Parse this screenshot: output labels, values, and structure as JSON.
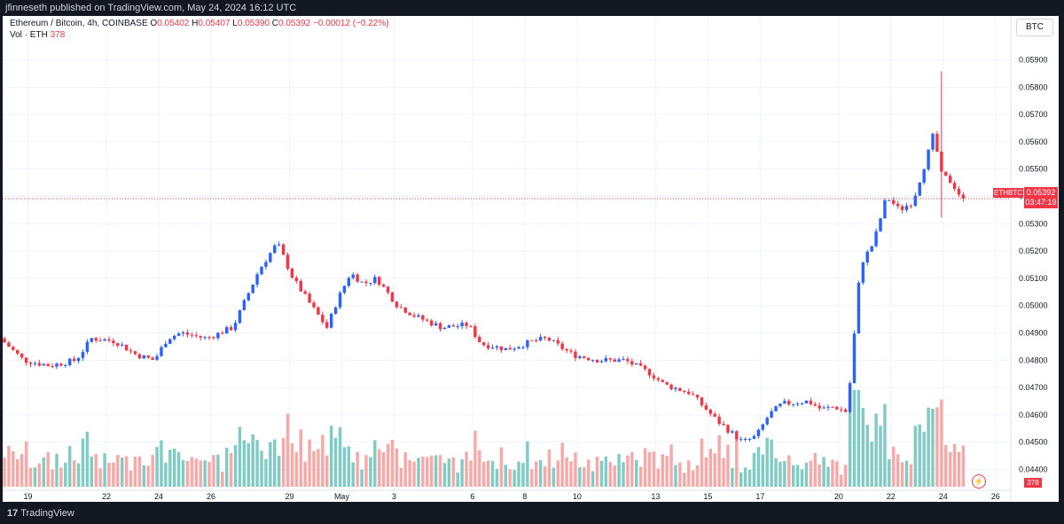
{
  "header": {
    "published_text": "jfinneseth published on TradingView.com, May 24, 2024 16:12 UTC"
  },
  "legend": {
    "symbol_text": "Ethereum / Bitcoin, 4h, COINBASE",
    "o_label": "O",
    "o_value": "0.05402",
    "h_label": "H",
    "h_value": "0.05407",
    "l_label": "L",
    "l_value": "0.05390",
    "c_label": "C",
    "c_value": "0.05392",
    "change": "−0.00012 (−0.22%)",
    "vol_label": "Vol · ETH",
    "vol_value": "378"
  },
  "currency": "BTC",
  "price_tag": {
    "symbol": "ETHBTC",
    "price": "0.05392",
    "countdown": "03:47:19"
  },
  "vol_tag": "378",
  "footer": {
    "logo_mark": "17",
    "logo_name": "TradingView"
  },
  "colors": {
    "up": "#2962ff",
    "down": "#f23645",
    "vol_up": "#80cbc4",
    "vol_down": "#f7a9a7"
  },
  "chart_data": {
    "type": "candlestick",
    "ylim": [
      0.0433,
      0.0597
    ],
    "y_ticks": [
      "0.04400",
      "0.04500",
      "0.04600",
      "0.04700",
      "0.04800",
      "0.04900",
      "0.05000",
      "0.05100",
      "0.05200",
      "0.05300",
      "0.05400",
      "0.05500",
      "0.05600",
      "0.05700",
      "0.05800",
      "0.05900"
    ],
    "x_ticks": [
      {
        "label": "19",
        "day": 19
      },
      {
        "label": "22",
        "day": 22
      },
      {
        "label": "24",
        "day": 24
      },
      {
        "label": "26",
        "day": 26
      },
      {
        "label": "29",
        "day": 29
      },
      {
        "label": "May",
        "day": 31
      },
      {
        "label": "3",
        "day": 33
      },
      {
        "label": "6",
        "day": 36
      },
      {
        "label": "8",
        "day": 38
      },
      {
        "label": "10",
        "day": 40
      },
      {
        "label": "13",
        "day": 43
      },
      {
        "label": "15",
        "day": 45
      },
      {
        "label": "17",
        "day": 47
      },
      {
        "label": "20",
        "day": 50
      },
      {
        "label": "22",
        "day": 52
      },
      {
        "label": "24",
        "day": 54
      },
      {
        "label": "26",
        "day": 56
      }
    ],
    "day_range": [
      18.1,
      56.55
    ],
    "last_close": 0.05392,
    "anchors": [
      [
        18.1,
        0.0488
      ],
      [
        19.0,
        0.048
      ],
      [
        20.0,
        0.0478
      ],
      [
        21.0,
        0.048
      ],
      [
        21.6,
        0.0488
      ],
      [
        22.5,
        0.0487
      ],
      [
        23.3,
        0.0482
      ],
      [
        24.0,
        0.048
      ],
      [
        24.5,
        0.0488
      ],
      [
        25.0,
        0.049
      ],
      [
        26.0,
        0.0488
      ],
      [
        27.0,
        0.0492
      ],
      [
        28.0,
        0.0513
      ],
      [
        28.7,
        0.0523
      ],
      [
        29.3,
        0.051
      ],
      [
        30.0,
        0.05
      ],
      [
        30.6,
        0.0492
      ],
      [
        31.0,
        0.0502
      ],
      [
        31.5,
        0.0512
      ],
      [
        32.0,
        0.0508
      ],
      [
        32.5,
        0.051
      ],
      [
        33.3,
        0.05
      ],
      [
        34.0,
        0.0496
      ],
      [
        35.0,
        0.0492
      ],
      [
        36.0,
        0.0493
      ],
      [
        36.5,
        0.0486
      ],
      [
        37.5,
        0.0484
      ],
      [
        38.5,
        0.0487
      ],
      [
        39.0,
        0.0488
      ],
      [
        40.0,
        0.0482
      ],
      [
        41.0,
        0.048
      ],
      [
        42.0,
        0.048
      ],
      [
        43.0,
        0.0475
      ],
      [
        43.5,
        0.0471
      ],
      [
        44.5,
        0.0468
      ],
      [
        45.5,
        0.0458
      ],
      [
        46.5,
        0.045
      ],
      [
        47.0,
        0.0452
      ],
      [
        47.5,
        0.046
      ],
      [
        48.0,
        0.0464
      ],
      [
        49.0,
        0.0465
      ],
      [
        49.5,
        0.0462
      ],
      [
        50.0,
        0.0463
      ],
      [
        50.5,
        0.0461
      ],
      [
        50.8,
        0.0493
      ],
      [
        51.0,
        0.0515
      ],
      [
        51.5,
        0.0523
      ],
      [
        52.0,
        0.054
      ],
      [
        52.5,
        0.0535
      ],
      [
        53.0,
        0.0538
      ],
      [
        53.5,
        0.0553
      ],
      [
        53.8,
        0.0563
      ],
      [
        54.1,
        0.0548
      ],
      [
        54.5,
        0.0545
      ],
      [
        54.9,
        0.0539
      ]
    ],
    "series": [
      {
        "name": "ETHBTC",
        "kind": "candles"
      },
      {
        "name": "Vol · ETH",
        "kind": "volume"
      }
    ]
  }
}
